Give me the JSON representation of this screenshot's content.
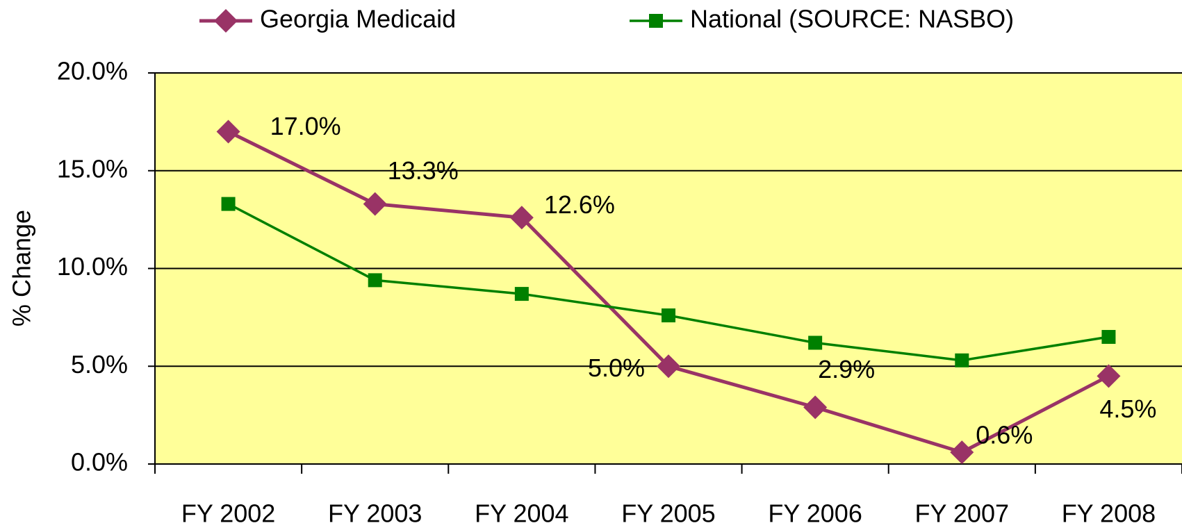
{
  "chart_data": {
    "type": "line",
    "y_label": "% Change",
    "categories": [
      "FY 2002",
      "FY 2003",
      "FY 2004",
      "FY 2005",
      "FY 2006",
      "FY 2007",
      "FY 2008"
    ],
    "series": [
      {
        "name": "Georgia Medicaid",
        "color": "#993366",
        "marker": "diamond",
        "values": [
          17.0,
          13.3,
          12.6,
          5.0,
          2.9,
          0.6,
          4.5
        ],
        "value_labels": [
          "17.0%",
          "13.3%",
          "12.6%",
          "5.0%",
          "2.9%",
          "0.6%",
          "4.5%"
        ]
      },
      {
        "name": "National (SOURCE: NASBO)",
        "color": "#008000",
        "marker": "square",
        "values": [
          13.3,
          9.4,
          8.7,
          7.6,
          6.2,
          5.3,
          6.5
        ]
      }
    ],
    "ylim": [
      0,
      20
    ],
    "yticks": [
      {
        "value": 0,
        "label": "0.0%"
      },
      {
        "value": 5,
        "label": "5.0%"
      },
      {
        "value": 10,
        "label": "10.0%"
      },
      {
        "value": 15,
        "label": "15.0%"
      },
      {
        "value": 20,
        "label": "20.0%"
      }
    ],
    "grid": true,
    "plot_background": "#FFFF99",
    "legend": "top"
  }
}
